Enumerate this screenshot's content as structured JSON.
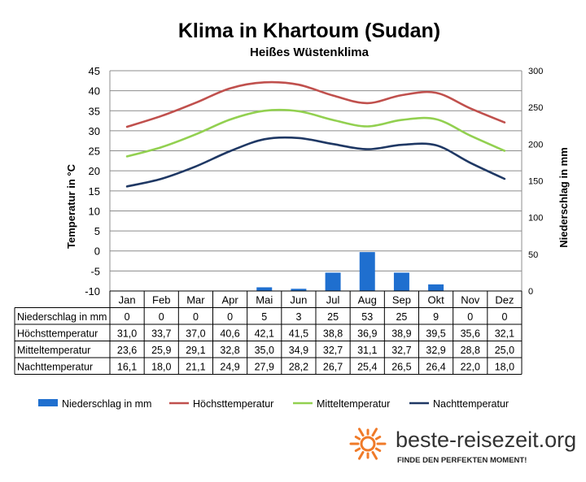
{
  "chart_data": {
    "type": "bar+line",
    "title": "Klima in Khartoum (Sudan)",
    "subtitle": "Heißes Wüstenklima",
    "ylabel_left": "Temperatur in °C",
    "ylabel_right": "Niederschlag in mm",
    "ylim_left": [
      -10,
      45
    ],
    "yticks_left": [
      "45",
      "40",
      "35",
      "30",
      "25",
      "20",
      "15",
      "10",
      "5",
      "0",
      "-5",
      "-10"
    ],
    "ylim_right": [
      0,
      300
    ],
    "yticks_right": [
      "300",
      "250",
      "200",
      "150",
      "100",
      "50",
      "0"
    ],
    "grid": true,
    "legend_position": "bottom",
    "categories": [
      "Jan",
      "Feb",
      "Mar",
      "Apr",
      "Mai",
      "Jun",
      "Jul",
      "Aug",
      "Sep",
      "Okt",
      "Nov",
      "Dez"
    ],
    "series": [
      {
        "name": "Niederschlag in mm",
        "type": "bar",
        "axis": "right",
        "color": "#1f6fcf",
        "values": [
          0,
          0,
          0,
          0,
          5,
          3,
          25,
          53,
          25,
          9,
          0,
          0
        ],
        "labels": [
          "0",
          "0",
          "0",
          "0",
          "5",
          "3",
          "25",
          "53",
          "25",
          "9",
          "0",
          "0"
        ]
      },
      {
        "name": "Höchsttemperatur",
        "type": "line",
        "axis": "left",
        "color": "#c0504d",
        "values": [
          31.0,
          33.7,
          37.0,
          40.6,
          42.1,
          41.5,
          38.8,
          36.9,
          38.9,
          39.5,
          35.6,
          32.1
        ],
        "labels": [
          "31,0",
          "33,7",
          "37,0",
          "40,6",
          "42,1",
          "41,5",
          "38,8",
          "36,9",
          "38,9",
          "39,5",
          "35,6",
          "32,1"
        ]
      },
      {
        "name": "Mitteltemperatur",
        "type": "line",
        "axis": "left",
        "color": "#92d050",
        "values": [
          23.6,
          25.9,
          29.1,
          32.8,
          35.0,
          34.9,
          32.7,
          31.1,
          32.7,
          32.9,
          28.8,
          25.0
        ],
        "labels": [
          "23,6",
          "25,9",
          "29,1",
          "32,8",
          "35,0",
          "34,9",
          "32,7",
          "31,1",
          "32,7",
          "32,9",
          "28,8",
          "25,0"
        ]
      },
      {
        "name": "Nachttemperatur",
        "type": "line",
        "axis": "left",
        "color": "#1f3864",
        "values": [
          16.1,
          18.0,
          21.1,
          24.9,
          27.9,
          28.2,
          26.7,
          25.4,
          26.5,
          26.4,
          22.0,
          18.0
        ],
        "labels": [
          "16,1",
          "18,0",
          "21,1",
          "24,9",
          "27,9",
          "28,2",
          "26,7",
          "25,4",
          "26,5",
          "26,4",
          "22,0",
          "18,0"
        ]
      }
    ]
  },
  "brand": {
    "name": "beste-reisezeit.org",
    "tagline": "FINDE DEN PERFEKTEN MOMENT!",
    "logo_icon": "sun-icon",
    "logo_color": "#f07a28"
  }
}
